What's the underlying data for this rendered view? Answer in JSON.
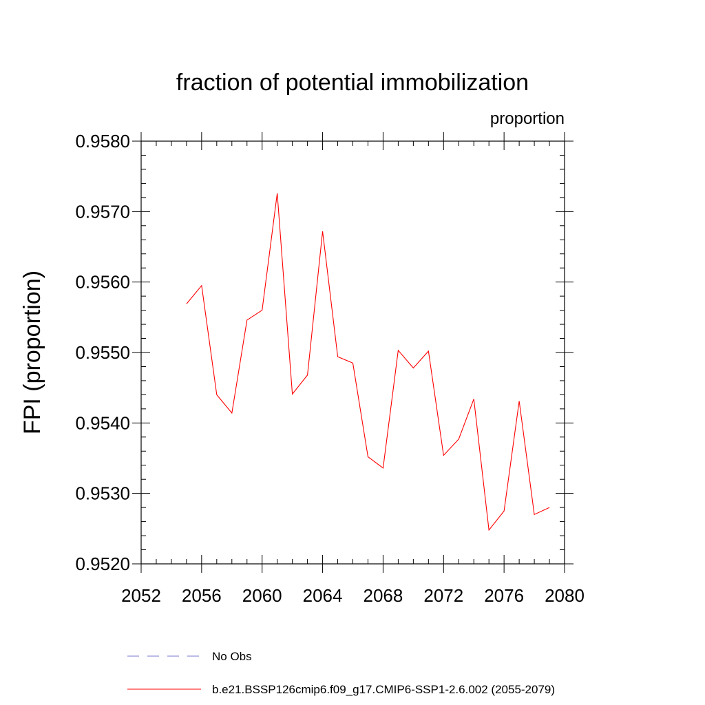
{
  "chart_data": {
    "type": "line",
    "title": "fraction of potential immobilization",
    "units_label": "proportion",
    "ylabel": "FPI  (proportion)",
    "xlabel": "",
    "xlim": [
      2052,
      2080
    ],
    "ylim": [
      0.952,
      0.958
    ],
    "x_ticks": [
      "2052",
      "2056",
      "2060",
      "2064",
      "2068",
      "2072",
      "2076",
      "2080"
    ],
    "y_ticks": [
      "0.9520",
      "0.9530",
      "0.9540",
      "0.9550",
      "0.9560",
      "0.9570",
      "0.9580"
    ],
    "series": [
      {
        "name": "b.e21.BSSP126cmip6.f09_g17.CMIP6-SSP1-2.6.002 (2055-2079)",
        "color": "#ff0000",
        "style": "solid",
        "x": [
          2055,
          2056,
          2057,
          2058,
          2059,
          2060,
          2061,
          2062,
          2063,
          2064,
          2065,
          2066,
          2067,
          2068,
          2069,
          2070,
          2071,
          2072,
          2073,
          2074,
          2075,
          2076,
          2077,
          2078,
          2079
        ],
        "y": [
          0.95569,
          0.95595,
          0.9544,
          0.95414,
          0.95546,
          0.9556,
          0.95726,
          0.95441,
          0.95468,
          0.95672,
          0.95494,
          0.95485,
          0.95352,
          0.95336,
          0.95503,
          0.95478,
          0.95502,
          0.95354,
          0.95377,
          0.95434,
          0.95248,
          0.95275,
          0.95431,
          0.9527,
          0.9528
        ]
      }
    ],
    "legend": [
      {
        "label": "No Obs",
        "color": "#7777cc",
        "style": "dashed"
      },
      {
        "label": "b.e21.BSSP126cmip6.f09_g17.CMIP6-SSP1-2.6.002 (2055-2079)",
        "color": "#ff0000",
        "style": "solid"
      }
    ],
    "legend_position": "bottom",
    "grid": false
  }
}
